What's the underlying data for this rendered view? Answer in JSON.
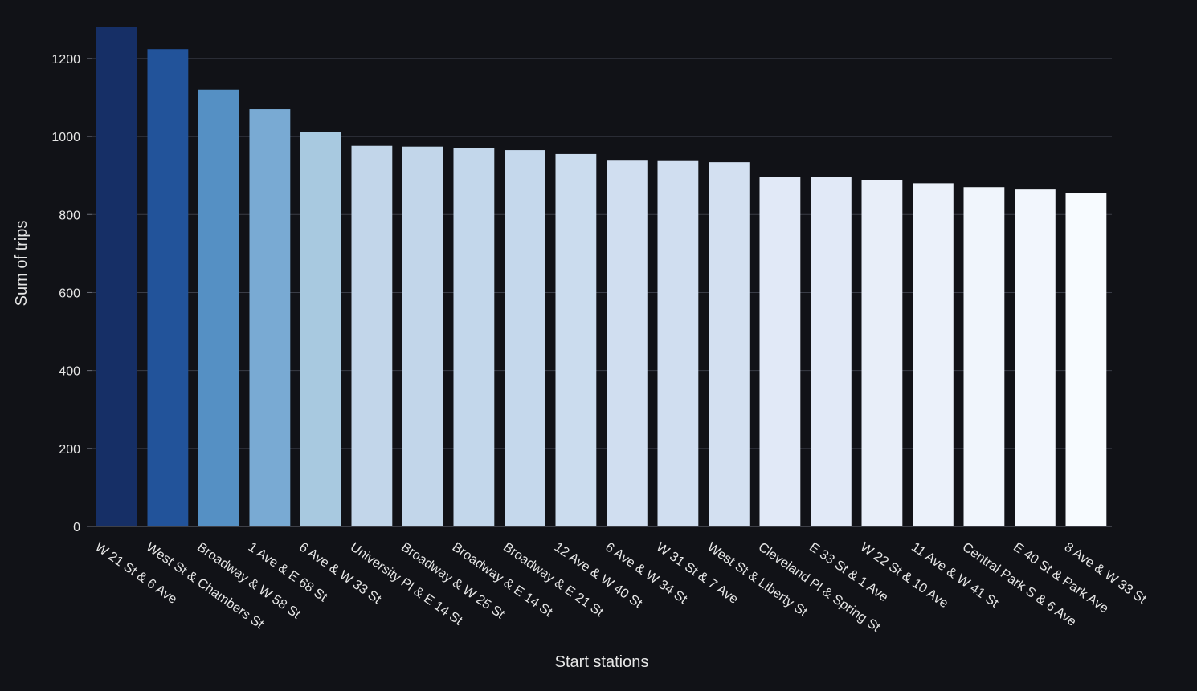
{
  "chart_data": {
    "type": "bar",
    "xlabel": "Start stations",
    "ylabel": "Sum of trips",
    "ylim": [
      0,
      1280
    ],
    "yticks": [
      0,
      200,
      400,
      600,
      800,
      1000,
      1200
    ],
    "grid": true,
    "categories": [
      "W 21 St & 6 Ave",
      "West St & Chambers St",
      "Broadway & W 58 St",
      "1 Ave & E 68 St",
      "6 Ave & W 33 St",
      "University Pl & E 14 St",
      "Broadway & W 25 St",
      "Broadway & E 14 St",
      "Broadway & E 21 St",
      "12 Ave & W 40 St",
      "6 Ave & W 34 St",
      "W 31 St & 7 Ave",
      "West St & Liberty St",
      "Cleveland Pl & Spring St",
      "E 33 St & 1 Ave",
      "W 22 St & 10 Ave",
      "11 Ave & W 41 St",
      "Central Park S & 6 Ave",
      "E 40 St & Park Ave",
      "8 Ave & W 33 St"
    ],
    "values": [
      1280,
      1224,
      1120,
      1070,
      1011,
      976,
      974,
      971,
      965,
      955,
      940,
      939,
      934,
      897,
      896,
      889,
      880,
      870,
      864,
      854
    ],
    "colors": [
      "#162f66",
      "#22539a",
      "#5590c4",
      "#79aad3",
      "#a8c9e0",
      "#c2d6ea",
      "#c2d6ea",
      "#c3d7eb",
      "#c5d8ec",
      "#cbdcee",
      "#d0def0",
      "#d0def0",
      "#d3e0f1",
      "#e1e9f7",
      "#e1e9f7",
      "#e8eef9",
      "#ebf1fa",
      "#f0f5fc",
      "#f2f6fd",
      "#f7fbff"
    ]
  }
}
